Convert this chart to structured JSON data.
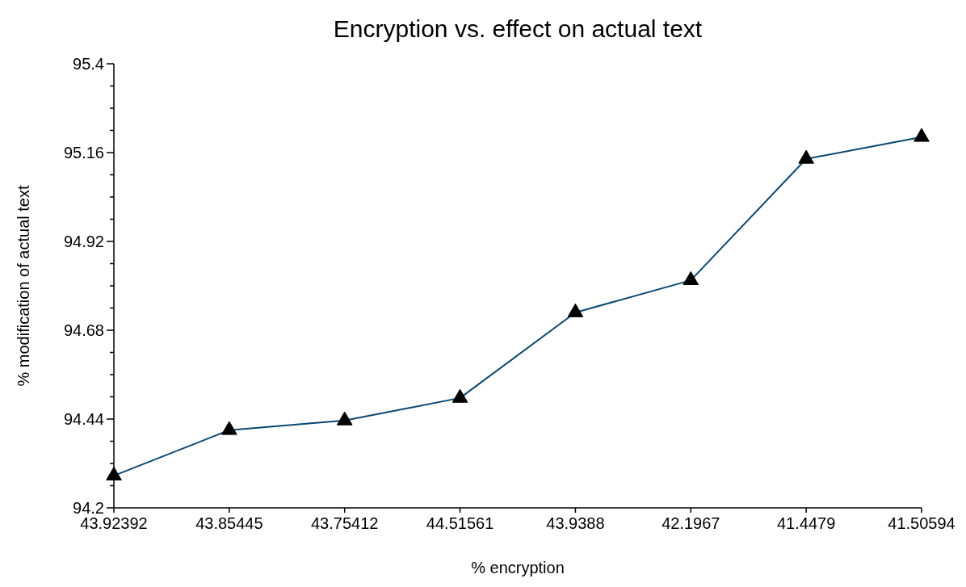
{
  "chart_data": {
    "type": "line",
    "title": "Encryption vs. effect on actual text",
    "xlabel": "% encryption",
    "ylabel": "% modification of actual text",
    "categories": [
      "43.92392",
      "43.85445",
      "43.75412",
      "44.51561",
      "43.9388",
      "42.1967",
      "41.4479",
      "41.50594"
    ],
    "series": [
      {
        "color": "#0b4770",
        "values": [
          94.287,
          94.41,
          94.436,
          94.497,
          94.728,
          94.815,
          95.143,
          95.202
        ]
      }
    ],
    "ylim": [
      94.2,
      95.4
    ],
    "yticks": [
      94.2,
      {
        "value": 94.26,
        "label": null
      },
      {
        "value": 94.32,
        "label": null
      },
      {
        "value": 94.38,
        "label": null
      },
      94.44,
      {
        "value": 94.5,
        "label": null
      },
      {
        "value": 94.56,
        "label": null
      },
      {
        "value": 94.62,
        "label": null
      },
      94.68,
      {
        "value": 94.74,
        "label": null
      },
      {
        "value": 94.8,
        "label": null
      },
      {
        "value": 94.86,
        "label": null
      },
      94.92,
      {
        "value": 94.98,
        "label": null
      },
      {
        "value": 95.04,
        "label": null
      },
      {
        "value": 95.1,
        "label": null
      },
      95.16,
      {
        "value": 95.22,
        "label": null
      },
      {
        "value": 95.28,
        "label": null
      },
      {
        "value": 95.34,
        "label": null
      },
      95.4
    ],
    "marker": "triangle",
    "line_style": "solid"
  }
}
